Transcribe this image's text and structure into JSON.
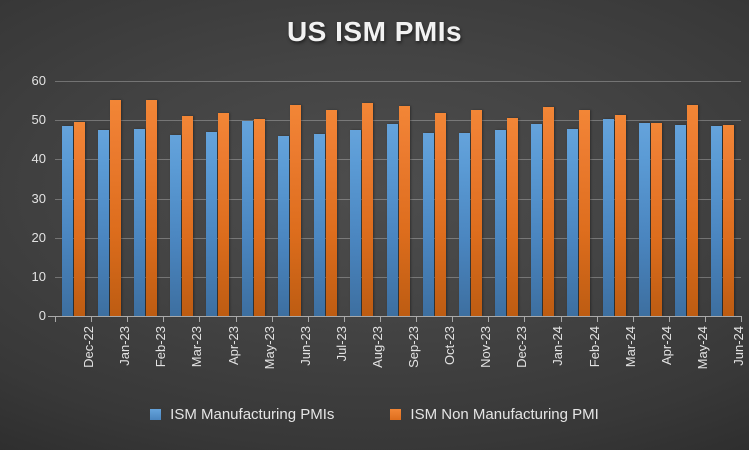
{
  "chart_data": {
    "type": "bar",
    "title": "US ISM PMIs",
    "categories": [
      "Dec-22",
      "Jan-23",
      "Feb-23",
      "Mar-23",
      "Apr-23",
      "May-23",
      "Jun-23",
      "Jul-23",
      "Aug-23",
      "Sep-23",
      "Oct-23",
      "Nov-23",
      "Dec-23",
      "Jan-24",
      "Feb-24",
      "Mar-24",
      "Apr-24",
      "May-24",
      "Jun-24"
    ],
    "series": [
      {
        "name": "ISM Manufacturing PMIs",
        "color": "#5B9BD5",
        "values": [
          48.4,
          47.4,
          47.7,
          46.3,
          47.1,
          49.7,
          46.0,
          46.4,
          47.6,
          49.0,
          46.7,
          46.7,
          47.4,
          49.1,
          47.8,
          50.3,
          49.2,
          48.7,
          48.5
        ]
      },
      {
        "name": "ISM Non Manufacturing PMI",
        "color": "#ED7D31",
        "values": [
          49.6,
          55.2,
          55.1,
          51.2,
          51.9,
          50.3,
          53.9,
          52.7,
          54.5,
          53.6,
          51.8,
          52.7,
          50.6,
          53.4,
          52.6,
          51.4,
          49.4,
          53.8,
          48.8
        ]
      }
    ],
    "xlabel": "",
    "ylabel": "",
    "ylim": [
      0,
      60
    ],
    "yticks": [
      0,
      10,
      20,
      30,
      40,
      50,
      60
    ],
    "grid": "horizontal",
    "legend_position": "bottom",
    "background": "#3d3d3d",
    "text_color": "#e2e2e2"
  }
}
